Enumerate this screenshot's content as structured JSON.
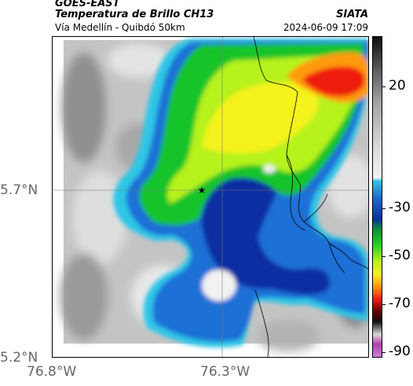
{
  "header": {
    "satellite": "GOES-EAST",
    "product": "Temperatura de Brillo CH13",
    "region": "Vía Medellín - Quibdó 50km",
    "organization": "SIATA",
    "timestamp": "2024-06-09 17:09"
  },
  "axes": {
    "lat_labels": [
      "5.7°N",
      "5.2°N"
    ],
    "lon_labels": [
      "76.8°W",
      "76.3°W"
    ]
  },
  "colorbar": {
    "labels": [
      "20",
      "-30",
      "-50",
      "-70",
      "-90"
    ],
    "stops": [
      "#101010",
      "#5a5a5a",
      "#a0a0a0",
      "#dcdcdc",
      "#f2f2f2",
      "#2fc6e6",
      "#1b6fd6",
      "#0c2fa3",
      "#0a8f3a",
      "#24d21c",
      "#b6f21a",
      "#f5f21a",
      "#ff9a10",
      "#ee1a10",
      "#5a0000",
      "#101010",
      "#d8d8d8",
      "#b040b0",
      "#d080d8"
    ]
  },
  "map": {
    "marker": "star-marker",
    "colors": {
      "cloud_free": "#bdbdbd",
      "light_gray": "#e6e6e6",
      "cyan": "#2fc6e6",
      "blue": "#1b6fd6",
      "deep_blue": "#0c2fa3",
      "green": "#17c42a",
      "yellow_green": "#b6f21a",
      "yellow": "#f5f21a",
      "orange": "#ff9a10",
      "red": "#ee1a10"
    }
  }
}
